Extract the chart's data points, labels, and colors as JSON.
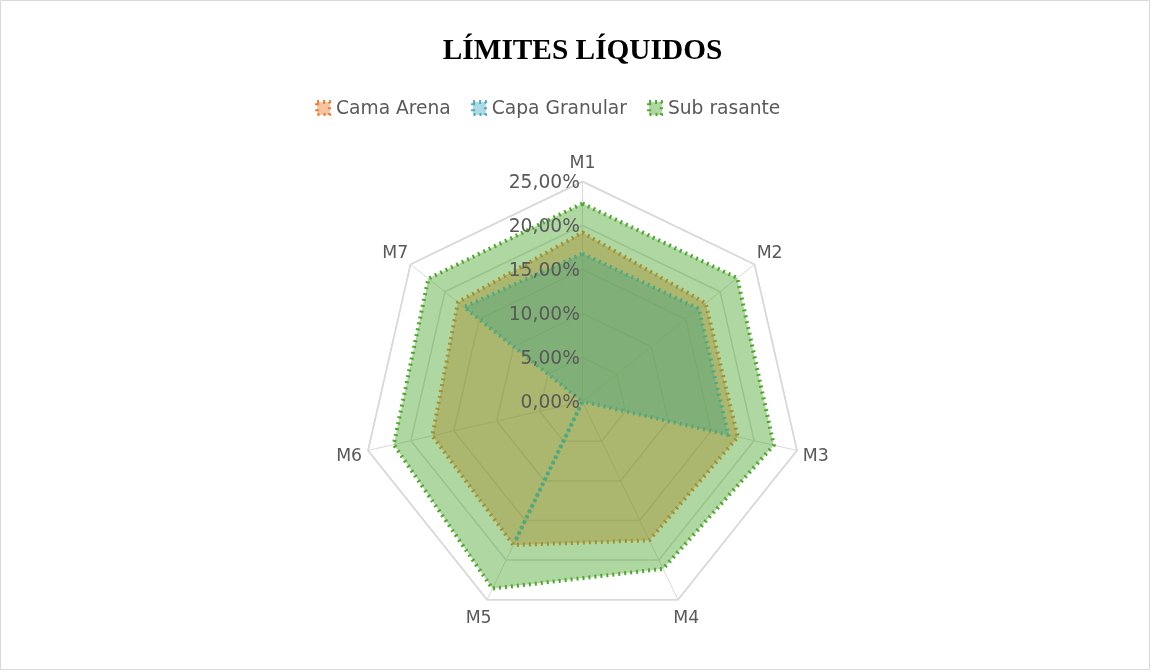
{
  "chart_data": {
    "type": "radar",
    "title": "LÍMITES LÍQUIDOS",
    "categories": [
      "M1",
      "M2",
      "M3",
      "M4",
      "M5",
      "M6",
      "M7"
    ],
    "series": [
      {
        "name": "Cama Arena",
        "color": "#ed7d31",
        "values": [
          0.192,
          0.179,
          0.181,
          0.175,
          0.181,
          0.175,
          0.181
        ]
      },
      {
        "name": "Capa Granular",
        "color": "#4bacc6",
        "values": [
          0.168,
          0.169,
          0.17,
          0,
          0.176,
          0,
          0.172
        ]
      },
      {
        "name": "Sub rasante",
        "color": "#4ea72e",
        "values": [
          0.225,
          0.225,
          0.223,
          0.211,
          0.236,
          0.22,
          0.224
        ]
      }
    ],
    "ylim": [
      0,
      0.25
    ],
    "yticks": [
      {
        "value": 0,
        "label": "0,00%"
      },
      {
        "value": 0.05,
        "label": "5,00%"
      },
      {
        "value": 0.1,
        "label": "10,00%"
      },
      {
        "value": 0.15,
        "label": "15,00%"
      },
      {
        "value": 0.2,
        "label": "20,00%"
      },
      {
        "value": 0.25,
        "label": "25,00%"
      }
    ],
    "grid": true,
    "legend": "top",
    "line_style": "dotted",
    "marker": "none"
  }
}
